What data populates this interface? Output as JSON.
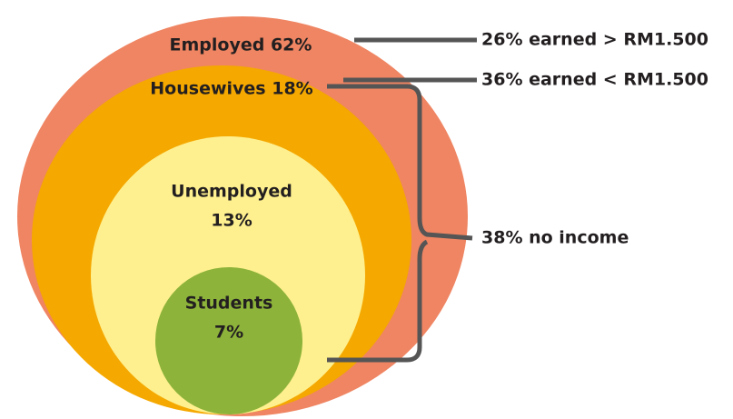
{
  "nodes": [
    {
      "lines": [
        "Employed 62%"
      ]
    },
    {
      "lines": [
        "Housewives 18%"
      ]
    },
    {
      "lines": [
        "Unemployed",
        "13%"
      ]
    },
    {
      "lines": [
        "Students",
        "7%"
      ]
    }
  ],
  "callouts": [
    "26% earned > RM1.500",
    "36% earned < RM1.500",
    "38% no income"
  ]
}
